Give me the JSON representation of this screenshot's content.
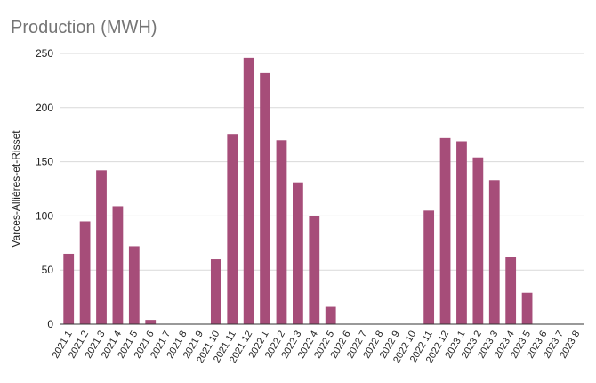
{
  "chart_data": {
    "type": "bar",
    "title": "Production (MWH)",
    "ylabel": "Varces-Allières-et-Risset",
    "xlabel": "",
    "ylim": [
      0,
      250
    ],
    "yticks": [
      0,
      50,
      100,
      150,
      200,
      250
    ],
    "grid": true,
    "bar_color": "#a64d79",
    "categories": [
      "2021 1",
      "2021 2",
      "2021 3",
      "2021 4",
      "2021 5",
      "2021 6",
      "2021 7",
      "2021 8",
      "2021 9",
      "2021 10",
      "2021 11",
      "2021 12",
      "2022 1",
      "2022 2",
      "2022 3",
      "2022 4",
      "2022 5",
      "2022 6",
      "2022 7",
      "2022 8",
      "2022 9",
      "2022 10",
      "2022 11",
      "2022 12",
      "2023 1",
      "2023 2",
      "2023 3",
      "2023 4",
      "2023 5",
      "2023 6",
      "2023 7",
      "2023 8"
    ],
    "values": [
      65,
      95,
      142,
      109,
      72,
      4,
      0,
      0,
      0,
      60,
      175,
      246,
      232,
      170,
      131,
      100,
      16,
      0,
      0,
      0,
      0,
      0,
      105,
      172,
      169,
      154,
      133,
      62,
      29,
      0,
      0,
      0
    ]
  }
}
